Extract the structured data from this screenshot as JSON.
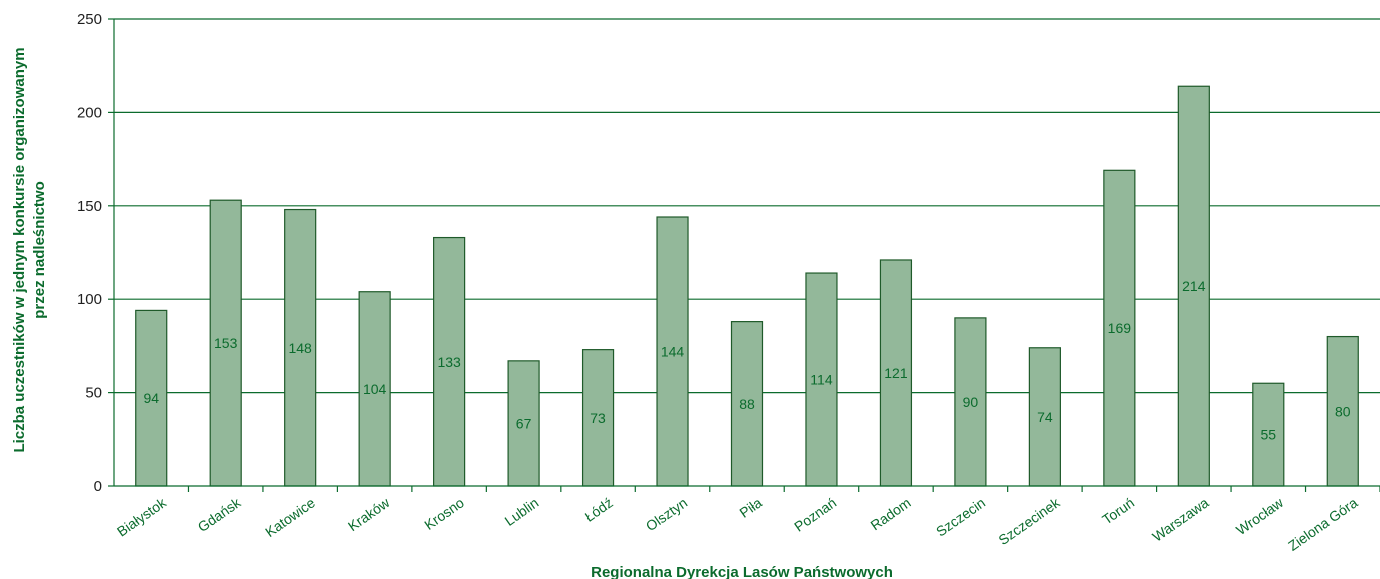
{
  "chart_data": {
    "type": "bar",
    "categories": [
      "Białystok",
      "Gdańsk",
      "Katowice",
      "Kraków",
      "Krosno",
      "Lublin",
      "Łódź",
      "Olsztyn",
      "Piła",
      "Poznań",
      "Radom",
      "Szczecin",
      "Szczecinek",
      "Toruń",
      "Warszawa",
      "Wrocław",
      "Zielona Góra"
    ],
    "values": [
      94,
      153,
      148,
      104,
      133,
      67,
      73,
      144,
      88,
      114,
      121,
      90,
      74,
      169,
      214,
      55,
      80
    ],
    "title": "",
    "xlabel": "Regionalna Dyrekcja Lasów Państwowych",
    "ylabel_lines": [
      "Liczba uczestników w jednym konkursie organizowanym",
      "przez nadleśnictwo"
    ],
    "ylim": [
      0,
      250
    ],
    "yticks": [
      0,
      50,
      100,
      150,
      200,
      250
    ],
    "grid": true,
    "legend": "none",
    "colors": {
      "bar_fill": "#93b89a",
      "bar_stroke": "#1f5a2a",
      "grid": "#0b6b2d",
      "axis": "#0b6b2d",
      "text": "#0b6b2d"
    }
  }
}
